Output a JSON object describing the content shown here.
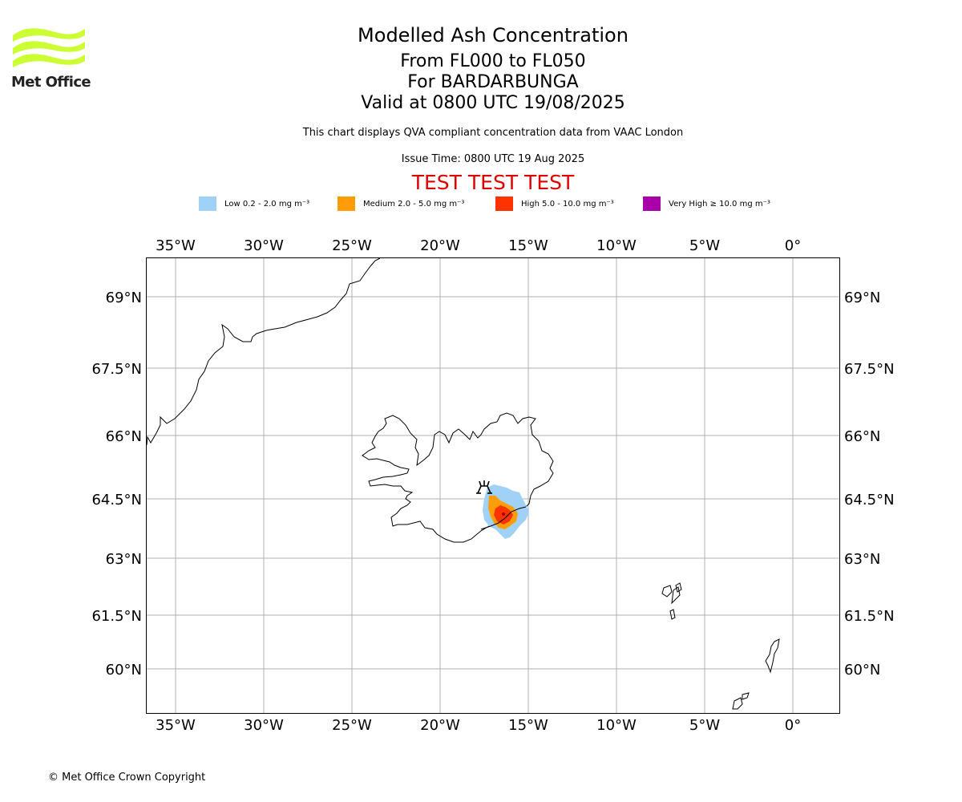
{
  "logo": {
    "name": "Met Office",
    "accent": "#ccff33"
  },
  "title": {
    "main": "Modelled Ash Concentration",
    "levels": "From FL000 to FL050",
    "volcano": "For BARDARBUNGA",
    "valid": "Valid at 0800 UTC 19/08/2025"
  },
  "note": "This chart displays QVA compliant concentration data from VAAC London",
  "issue_time": "Issue Time: 0800 UTC 19 Aug 2025",
  "test_banner": "TEST TEST TEST",
  "legend": [
    {
      "label": "Low 0.2 - 2.0 mg m⁻³",
      "color": "#a0d2f7"
    },
    {
      "label": "Medium 2.0 - 5.0 mg m⁻³",
      "color": "#ff9d09"
    },
    {
      "label": "High 5.0 - 10.0 mg m⁻³",
      "color": "#ff3300"
    },
    {
      "label": "Very High ≥ 10.0 mg m⁻³",
      "color": "#aa00aa"
    }
  ],
  "axes": {
    "lon_ticks": [
      "35°W",
      "30°W",
      "25°W",
      "20°W",
      "15°W",
      "10°W",
      "5°W",
      "0°"
    ],
    "lat_ticks": [
      "69°N",
      "67.5°N",
      "66°N",
      "64.5°N",
      "63°N",
      "61.5°N",
      "60°N"
    ]
  },
  "volcano_marker": {
    "name": "volcano-icon",
    "lat": 64.6,
    "lon": -17.5
  },
  "copyright": "© Met Office Crown Copyright"
}
